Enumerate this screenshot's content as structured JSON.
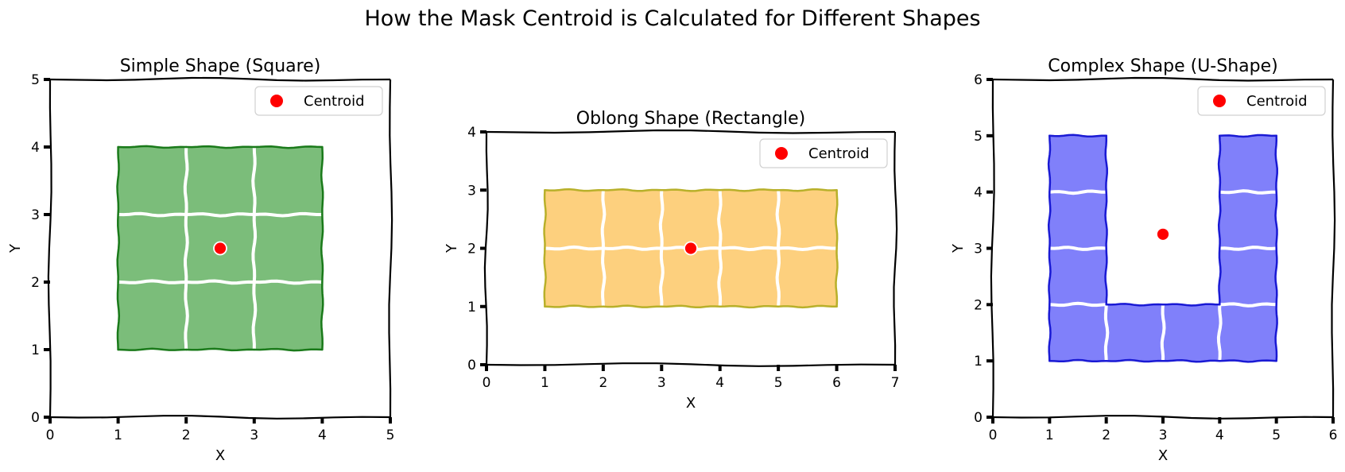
{
  "figure": {
    "title": "How the Mask Centroid is Calculated for Different Shapes"
  },
  "chart_data": [
    {
      "type": "scatter",
      "title": "Simple Shape (Square)",
      "xlabel": "X",
      "ylabel": "Y",
      "xlim": [
        0,
        5
      ],
      "ylim": [
        0,
        5
      ],
      "xticks": [
        0,
        1,
        2,
        3,
        4,
        5
      ],
      "yticks": [
        0,
        1,
        2,
        3,
        4,
        5
      ],
      "mask": {
        "x0": 1,
        "y0": 1,
        "cols": 3,
        "rows": 3,
        "cells": [
          [
            1,
            1,
            1
          ],
          [
            1,
            1,
            1
          ],
          [
            1,
            1,
            1
          ]
        ],
        "fill": "#7bbd7a",
        "edge": "#1a7a1a"
      },
      "centroid": {
        "x": 2.5,
        "y": 2.5
      },
      "legend": {
        "label": "Centroid",
        "position": "top-right"
      },
      "grid": false
    },
    {
      "type": "scatter",
      "title": "Oblong Shape (Rectangle)",
      "xlabel": "X",
      "ylabel": "Y",
      "xlim": [
        0,
        7
      ],
      "ylim": [
        0,
        4
      ],
      "xticks": [
        0,
        1,
        2,
        3,
        4,
        5,
        6,
        7
      ],
      "yticks": [
        0,
        1,
        2,
        3,
        4
      ],
      "mask": {
        "x0": 1,
        "y0": 1,
        "cols": 5,
        "rows": 2,
        "cells": [
          [
            1,
            1,
            1,
            1,
            1
          ],
          [
            1,
            1,
            1,
            1,
            1
          ]
        ],
        "fill": "#fdd07e",
        "edge": "#b8b02a"
      },
      "centroid": {
        "x": 3.5,
        "y": 2.0
      },
      "legend": {
        "label": "Centroid",
        "position": "top-right"
      },
      "grid": false
    },
    {
      "type": "scatter",
      "title": "Complex Shape (U-Shape)",
      "xlabel": "X",
      "ylabel": "Y",
      "xlim": [
        0,
        6
      ],
      "ylim": [
        0,
        6
      ],
      "xticks": [
        0,
        1,
        2,
        3,
        4,
        5,
        6
      ],
      "yticks": [
        0,
        1,
        2,
        3,
        4,
        5,
        6
      ],
      "mask": {
        "x0": 1,
        "y0": 1,
        "cols": 4,
        "rows": 4,
        "cells": [
          [
            1,
            1,
            1,
            1
          ],
          [
            1,
            0,
            0,
            1
          ],
          [
            1,
            0,
            0,
            1
          ],
          [
            1,
            0,
            0,
            1
          ]
        ],
        "fill": "#8080fa",
        "edge": "#1a1ad4"
      },
      "centroid": {
        "x": 3.0,
        "y": 3.25
      },
      "legend": {
        "label": "Centroid",
        "position": "top-right"
      },
      "grid": false
    }
  ],
  "colors": {
    "centroid": "#ff0000"
  }
}
